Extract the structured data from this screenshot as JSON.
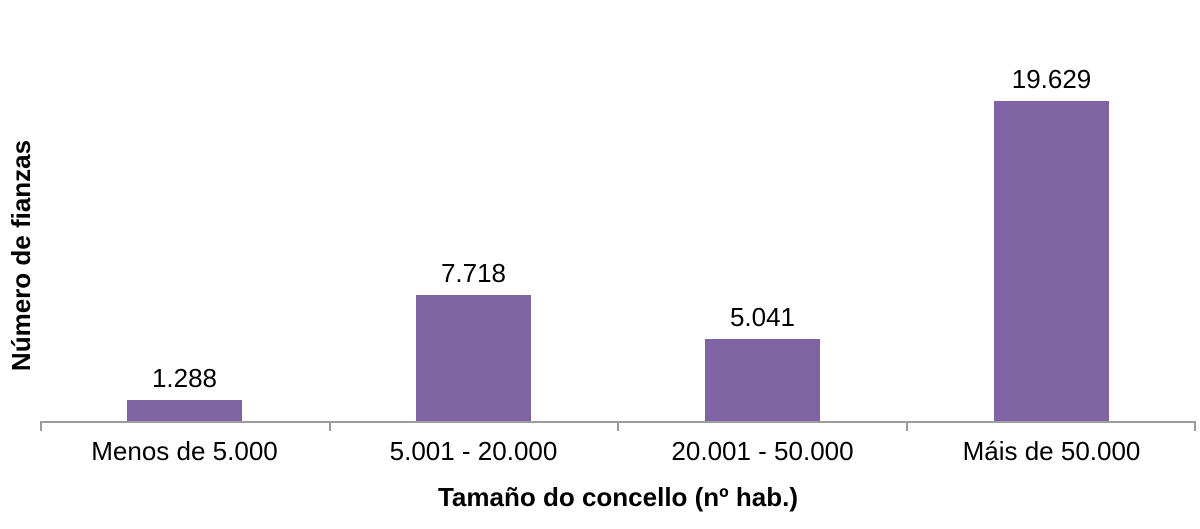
{
  "chart_data": {
    "type": "bar",
    "title": "",
    "xlabel": "Tamaño do concello (nº hab.)",
    "ylabel": "Número de fianzas",
    "categories": [
      "Menos de 5.000",
      "5.001 - 20.000",
      "20.001 - 50.000",
      "Máis de 50.000"
    ],
    "values": [
      1288,
      7718,
      5041,
      19629
    ],
    "value_labels": [
      "1.288",
      "7.718",
      "5.041",
      "19.629"
    ],
    "series_name": "Número de fianzas",
    "bar_color": "#7E64A2",
    "axis_color": "#9C9C9C",
    "text_color": "#000000",
    "background_color": "#FFFFFF",
    "legend": "none",
    "grid": "off",
    "data_labels": "above-bars",
    "ylim": [
      0,
      21000
    ]
  }
}
